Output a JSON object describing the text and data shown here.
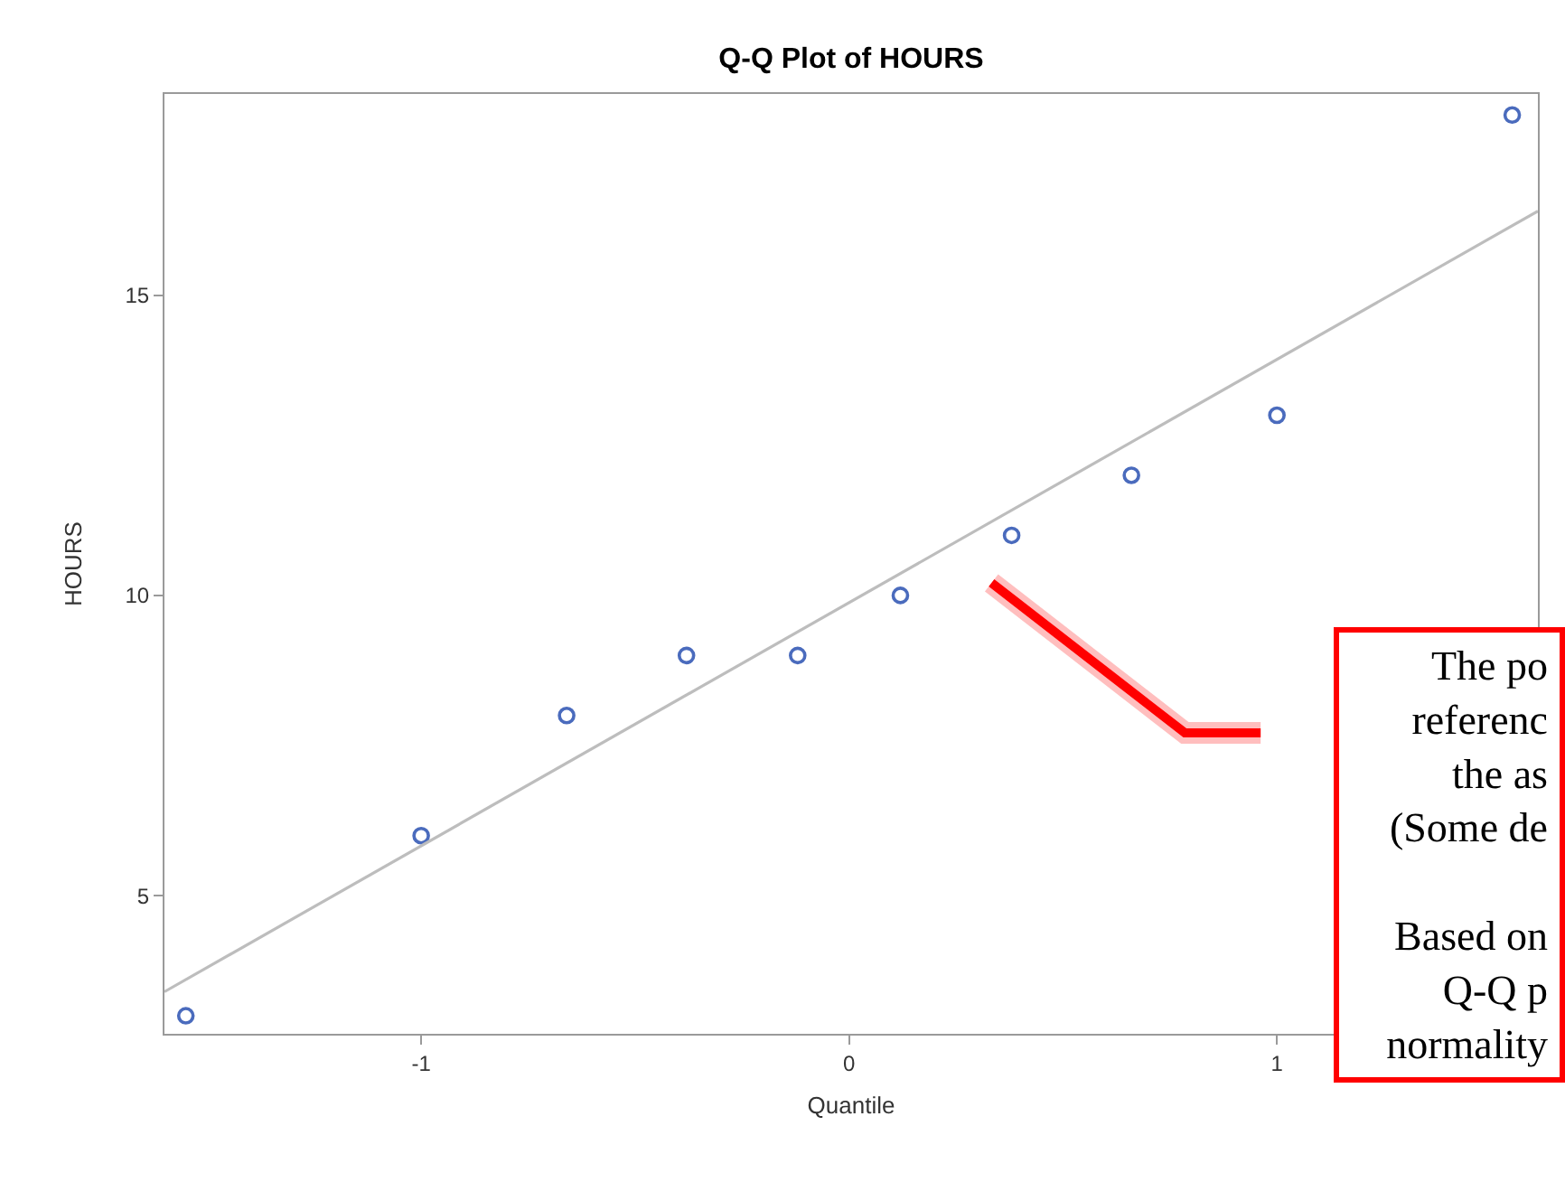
{
  "chart_data": {
    "type": "scatter",
    "title": "Q-Q Plot of HOURS",
    "xlabel": "Quantile",
    "ylabel": "HOURS",
    "series": [
      {
        "color": "#4a6bbd",
        "marker": "circle",
        "x": [
          -1.55,
          -1.0,
          -0.66,
          -0.38,
          -0.12,
          0.12,
          0.38,
          0.66,
          1.0,
          1.55
        ],
        "values": [
          3,
          6,
          8,
          9,
          9,
          10,
          11,
          12,
          13,
          18
        ]
      },
      {
        "type": "line",
        "marker": "none",
        "color": "#bdbdbd",
        "x": [
          -1.6,
          1.61
        ],
        "values": [
          3.4,
          16.4
        ]
      }
    ],
    "line_style": "solid",
    "xlim": [
      -1.6,
      1.61
    ],
    "ylim": [
      2.7,
      18.35
    ],
    "xticks": [
      -1,
      0,
      1
    ],
    "yticks": [
      5,
      10,
      15
    ],
    "annotations": [
      "The po\nreferenc\nthe as\n(Some de\n\nBased on\nQ-Q p\nnormality"
    ]
  }
}
